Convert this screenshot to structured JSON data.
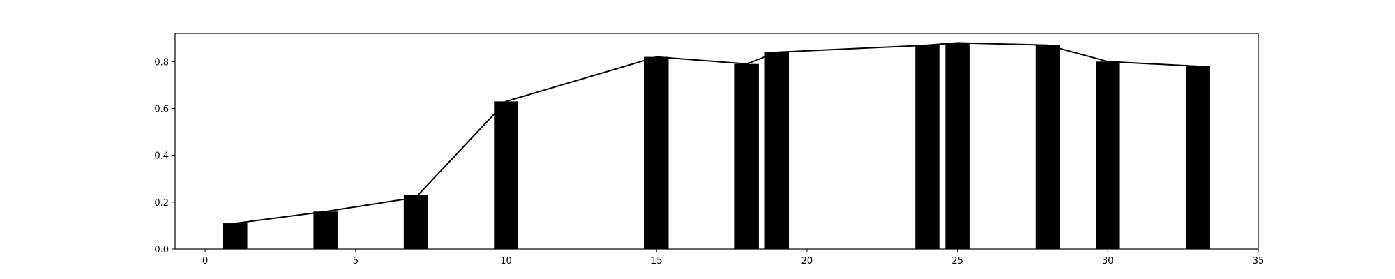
{
  "chart_data": {
    "type": "bar",
    "title": "",
    "xlabel": "",
    "ylabel": "",
    "xlim": [
      -1,
      35
    ],
    "ylim": [
      0,
      0.92
    ],
    "grid": false,
    "legend": "none",
    "x": [
      1,
      4,
      7,
      10,
      15,
      18,
      19,
      24,
      25,
      28,
      30,
      33
    ],
    "values": [
      0.11,
      0.16,
      0.23,
      0.63,
      0.82,
      0.79,
      0.84,
      0.87,
      0.88,
      0.87,
      0.8,
      0.78
    ],
    "line_values": [
      0.11,
      0.16,
      0.22,
      0.63,
      0.82,
      0.79,
      0.84,
      0.87,
      0.88,
      0.87,
      0.8,
      0.78
    ],
    "bar_width_data_units": 0.8,
    "x_ticks": [
      0,
      5,
      10,
      15,
      20,
      25,
      30,
      35
    ],
    "y_ticks": [
      0.0,
      0.2,
      0.4,
      0.6,
      0.8
    ],
    "x_tick_labels": [
      "0",
      "5",
      "10",
      "15",
      "20",
      "25",
      "30",
      "35"
    ],
    "y_tick_labels": [
      "0.0",
      "0.2",
      "0.4",
      "0.6",
      "0.8"
    ],
    "colors": {
      "bar": "#000000",
      "line": "#000000",
      "axes": "#000000"
    }
  }
}
